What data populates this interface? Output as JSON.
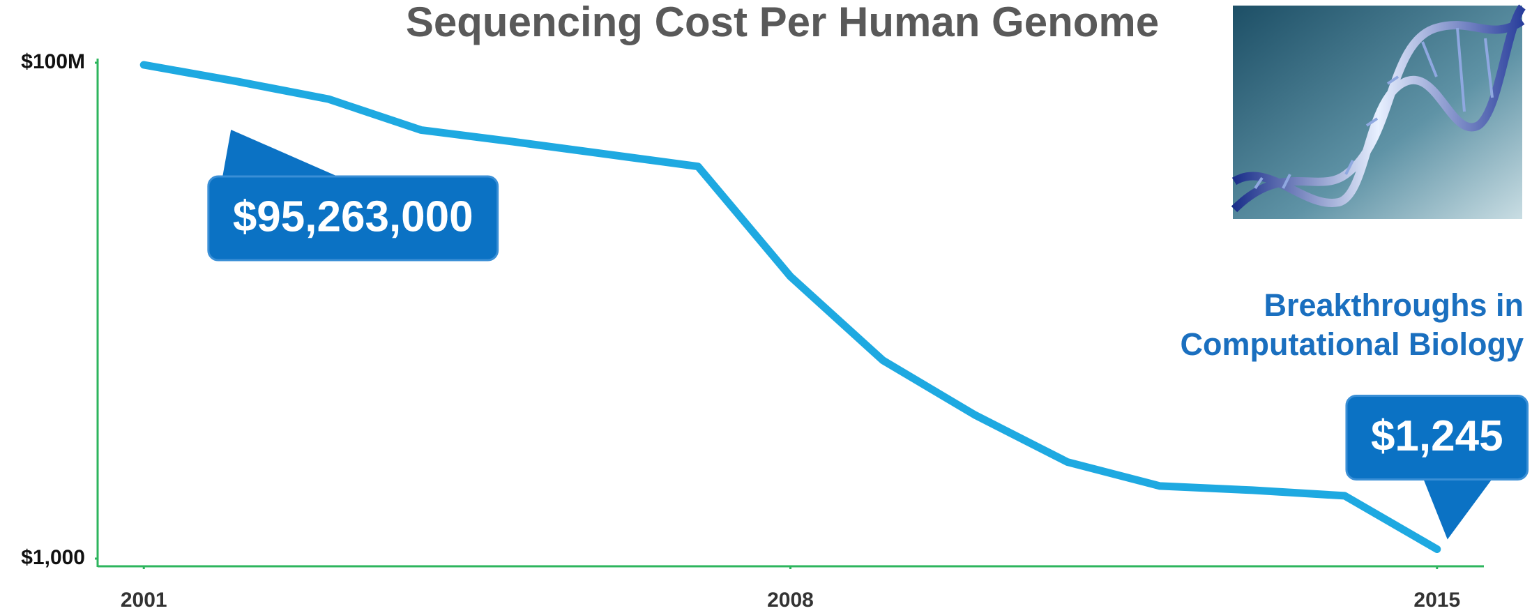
{
  "chart_data": {
    "type": "line",
    "title": "Sequencing Cost Per Human Genome",
    "x": [
      2001,
      2002,
      2003,
      2004,
      2005,
      2006,
      2007,
      2008,
      2009,
      2010,
      2011,
      2012,
      2013,
      2014,
      2015
    ],
    "values": [
      95263000,
      65000000,
      43000000,
      21000000,
      16000000,
      12000000,
      9000000,
      700000,
      100000,
      28000,
      9400,
      5400,
      4900,
      4300,
      1245
    ],
    "value_labels": [
      "$95,263,000",
      null,
      null,
      null,
      null,
      null,
      null,
      null,
      null,
      null,
      null,
      null,
      null,
      null,
      "$1,245"
    ],
    "color": "#1ea9e1",
    "yscale": "log",
    "ylim": [
      1000,
      100000000
    ],
    "yticks": [
      {
        "value": 100000000,
        "label": "$100M"
      },
      {
        "value": 1000,
        "label": "$1,000"
      }
    ],
    "xlim": [
      2000.5,
      2015.5
    ],
    "xticks": [
      2001,
      2008,
      2015
    ],
    "annotation": [
      "Breakthroughs in",
      "Computational Biology"
    ]
  }
}
